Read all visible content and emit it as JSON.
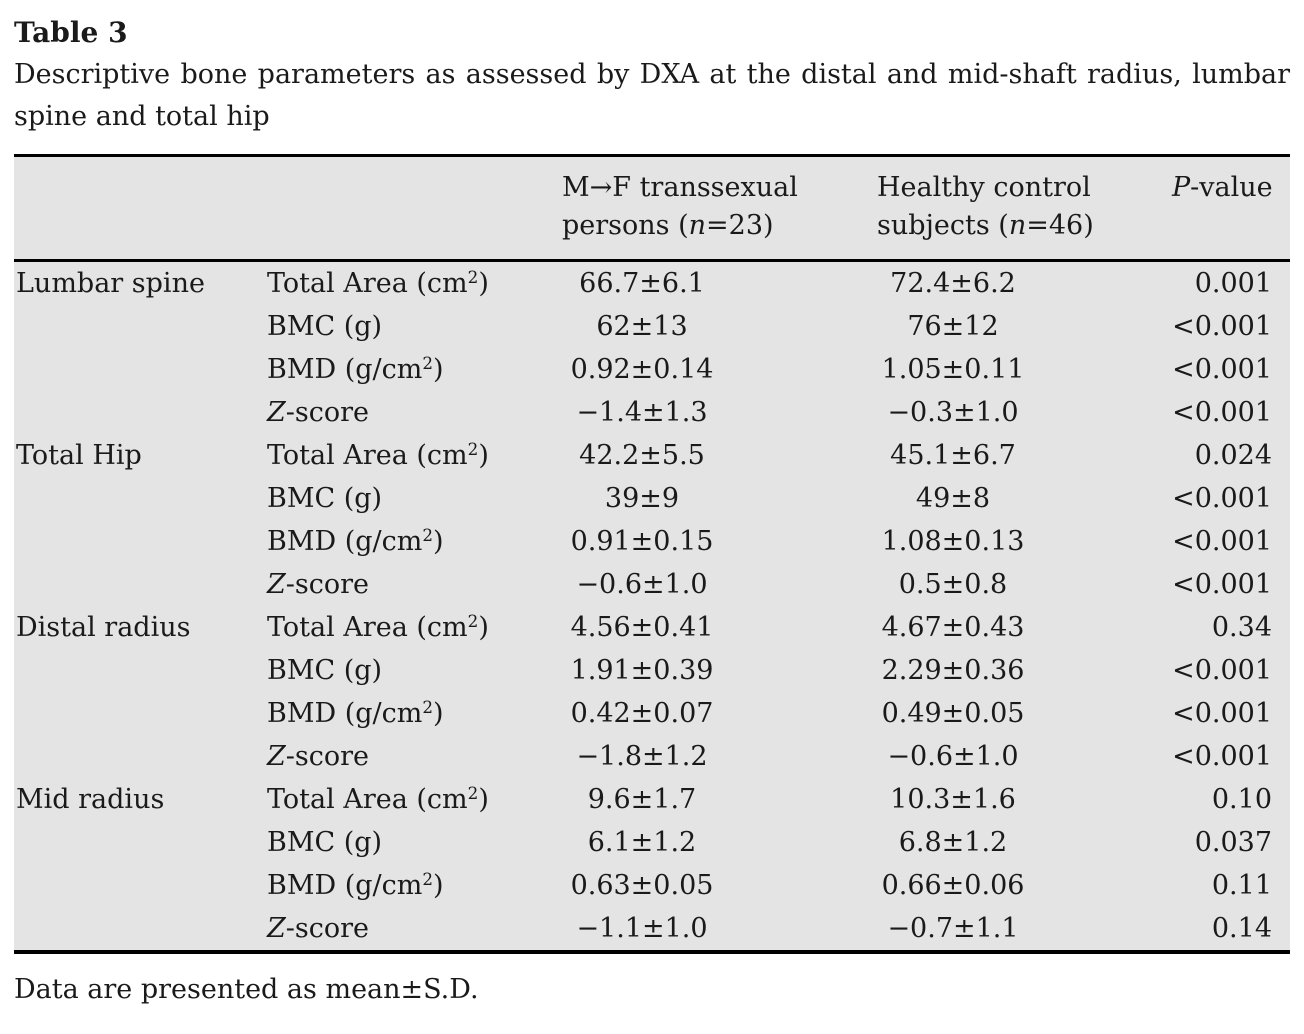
{
  "title": "Table 3",
  "caption": "Descriptive bone parameters as assessed by DXA at the distal and mid-shaft radius, lumbar spine and total hip",
  "footnote": "Data are presented as mean±S.D.",
  "colors": {
    "table_background": "#e4e4e4",
    "rule": "#000000",
    "text": "#1a1a1a"
  },
  "table": {
    "headers": {
      "region": "",
      "parameter": "",
      "mf_html": "M→F transsexual persons (<i>n</i>=23)",
      "control_html": "Healthy control subjects (<i>n</i>=46)",
      "pvalue_html": "<i>P</i>-value"
    },
    "groups": [
      {
        "region": "Lumbar spine",
        "rows": [
          {
            "param": "Total Area (cm<sup>2</sup>)",
            "mf": "66.7±6.1",
            "control": "72.4±6.2",
            "p": "0.001"
          },
          {
            "param": "BMC (g)",
            "mf": "62±13",
            "control": "76±12",
            "p": "<0.001"
          },
          {
            "param": "BMD (g/cm<sup>2</sup>)",
            "mf": "0.92±0.14",
            "control": "1.05±0.11",
            "p": "<0.001"
          },
          {
            "param": "<i>Z</i>-score",
            "mf": "−1.4±1.3",
            "control": "−0.3±1.0",
            "p": "<0.001"
          }
        ]
      },
      {
        "region": "Total Hip",
        "rows": [
          {
            "param": "Total Area (cm<sup>2</sup>)",
            "mf": "42.2±5.5",
            "control": "45.1±6.7",
            "p": "0.024"
          },
          {
            "param": "BMC (g)",
            "mf": "39±9",
            "control": "49±8",
            "p": "<0.001"
          },
          {
            "param": "BMD (g/cm<sup>2</sup>)",
            "mf": "0.91±0.15",
            "control": "1.08±0.13",
            "p": "<0.001"
          },
          {
            "param": "<i>Z</i>-score",
            "mf": "−0.6±1.0",
            "control": "0.5±0.8",
            "p": "<0.001"
          }
        ]
      },
      {
        "region": "Distal radius",
        "rows": [
          {
            "param": "Total Area (cm<sup>2</sup>)",
            "mf": "4.56±0.41",
            "control": "4.67±0.43",
            "p": "0.34"
          },
          {
            "param": "BMC (g)",
            "mf": "1.91±0.39",
            "control": "2.29±0.36",
            "p": "<0.001"
          },
          {
            "param": "BMD (g/cm<sup>2</sup>)",
            "mf": "0.42±0.07",
            "control": "0.49±0.05",
            "p": "<0.001"
          },
          {
            "param": "<i>Z</i>-score",
            "mf": "−1.8±1.2",
            "control": "−0.6±1.0",
            "p": "<0.001"
          }
        ]
      },
      {
        "region": "Mid radius",
        "rows": [
          {
            "param": "Total Area (cm<sup>2</sup>)",
            "mf": "9.6±1.7",
            "control": "10.3±1.6",
            "p": "0.10"
          },
          {
            "param": "BMC (g)",
            "mf": "6.1±1.2",
            "control": "6.8±1.2",
            "p": "0.037"
          },
          {
            "param": "BMD (g/cm<sup>2</sup>)",
            "mf": "0.63±0.05",
            "control": "0.66±0.06",
            "p": "0.11"
          },
          {
            "param": "<i>Z</i>-score",
            "mf": "−1.1±1.0",
            "control": "−0.7±1.1",
            "p": "0.14"
          }
        ]
      }
    ]
  }
}
